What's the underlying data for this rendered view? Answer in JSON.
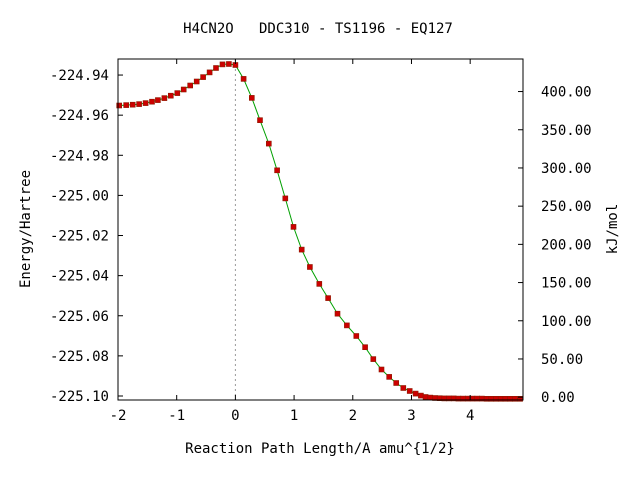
{
  "chart_data": {
    "type": "line",
    "title": "H4CN2O   DDC310 - TS1196 - EQ127",
    "xlabel": "Reaction Path Length/A amu^{1/2}",
    "ylabel": "Energy/Hartree",
    "y2label": "kJ/mol",
    "xlim": [
      -2.0,
      4.9
    ],
    "ylim": [
      -225.102,
      -224.932
    ],
    "y2lim": [
      -3.7,
      442.6
    ],
    "x_ticks": [
      "-2",
      "-1",
      "0",
      "1",
      "2",
      "3",
      "4"
    ],
    "y_ticks": [
      "-224.94",
      "-224.96",
      "-224.98",
      "-225.00",
      "-225.02",
      "-225.04",
      "-225.06",
      "-225.08",
      "-225.10"
    ],
    "y2_ticks": [
      "0.00",
      "50.00",
      "100.00",
      "150.00",
      "200.00",
      "250.00",
      "300.00",
      "350.00",
      "400.00"
    ],
    "ts_marker_x": 0.0,
    "grid": false,
    "legend": "none",
    "colors": {
      "line": "#00a000",
      "marker": "#cc0000",
      "marker_edge": "#8b1a00",
      "ts_line": "#999999"
    },
    "series": [
      {
        "x": [
          -1.98,
          -1.86,
          -1.75,
          -1.64,
          -1.53,
          -1.42,
          -1.32,
          -1.21,
          -1.1,
          -0.99,
          -0.88,
          -0.77,
          -0.66,
          -0.55,
          -0.44,
          -0.33,
          -0.22,
          -0.11,
          0.0,
          0.14,
          0.28,
          0.42,
          0.57,
          0.71,
          0.85,
          0.99,
          1.13,
          1.27,
          1.43,
          1.58,
          1.74,
          1.9,
          2.06,
          2.21,
          2.35,
          2.49,
          2.62,
          2.74,
          2.86,
          2.97,
          3.07,
          3.16,
          3.24,
          3.32,
          3.4,
          3.48,
          3.56,
          3.64,
          3.72,
          3.8,
          3.88,
          3.96,
          4.04,
          4.12,
          4.2,
          4.28,
          4.36,
          4.44,
          4.52,
          4.6,
          4.68,
          4.76,
          4.85
        ],
        "y": [
          -224.9552,
          -224.955,
          -224.9548,
          -224.9545,
          -224.954,
          -224.9533,
          -224.9525,
          -224.9515,
          -224.9503,
          -224.949,
          -224.9472,
          -224.9452,
          -224.9432,
          -224.941,
          -224.9387,
          -224.9365,
          -224.9347,
          -224.9345,
          -224.935,
          -224.9419,
          -224.9514,
          -224.9625,
          -224.9742,
          -224.9875,
          -225.0015,
          -225.0157,
          -225.027,
          -225.0357,
          -225.0441,
          -225.0512,
          -225.059,
          -225.0648,
          -225.0701,
          -225.0757,
          -225.0816,
          -225.0868,
          -225.0905,
          -225.0935,
          -225.096,
          -225.0975,
          -225.0988,
          -225.0998,
          -225.1005,
          -225.1008,
          -225.101,
          -225.1011,
          -225.1012,
          -225.1012,
          -225.1012,
          -225.1013,
          -225.1013,
          -225.1013,
          -225.1013,
          -225.1013,
          -225.1013,
          -225.1014,
          -225.1014,
          -225.1014,
          -225.1014,
          -225.1014,
          -225.1014,
          -225.1014,
          -225.1014
        ]
      }
    ]
  }
}
